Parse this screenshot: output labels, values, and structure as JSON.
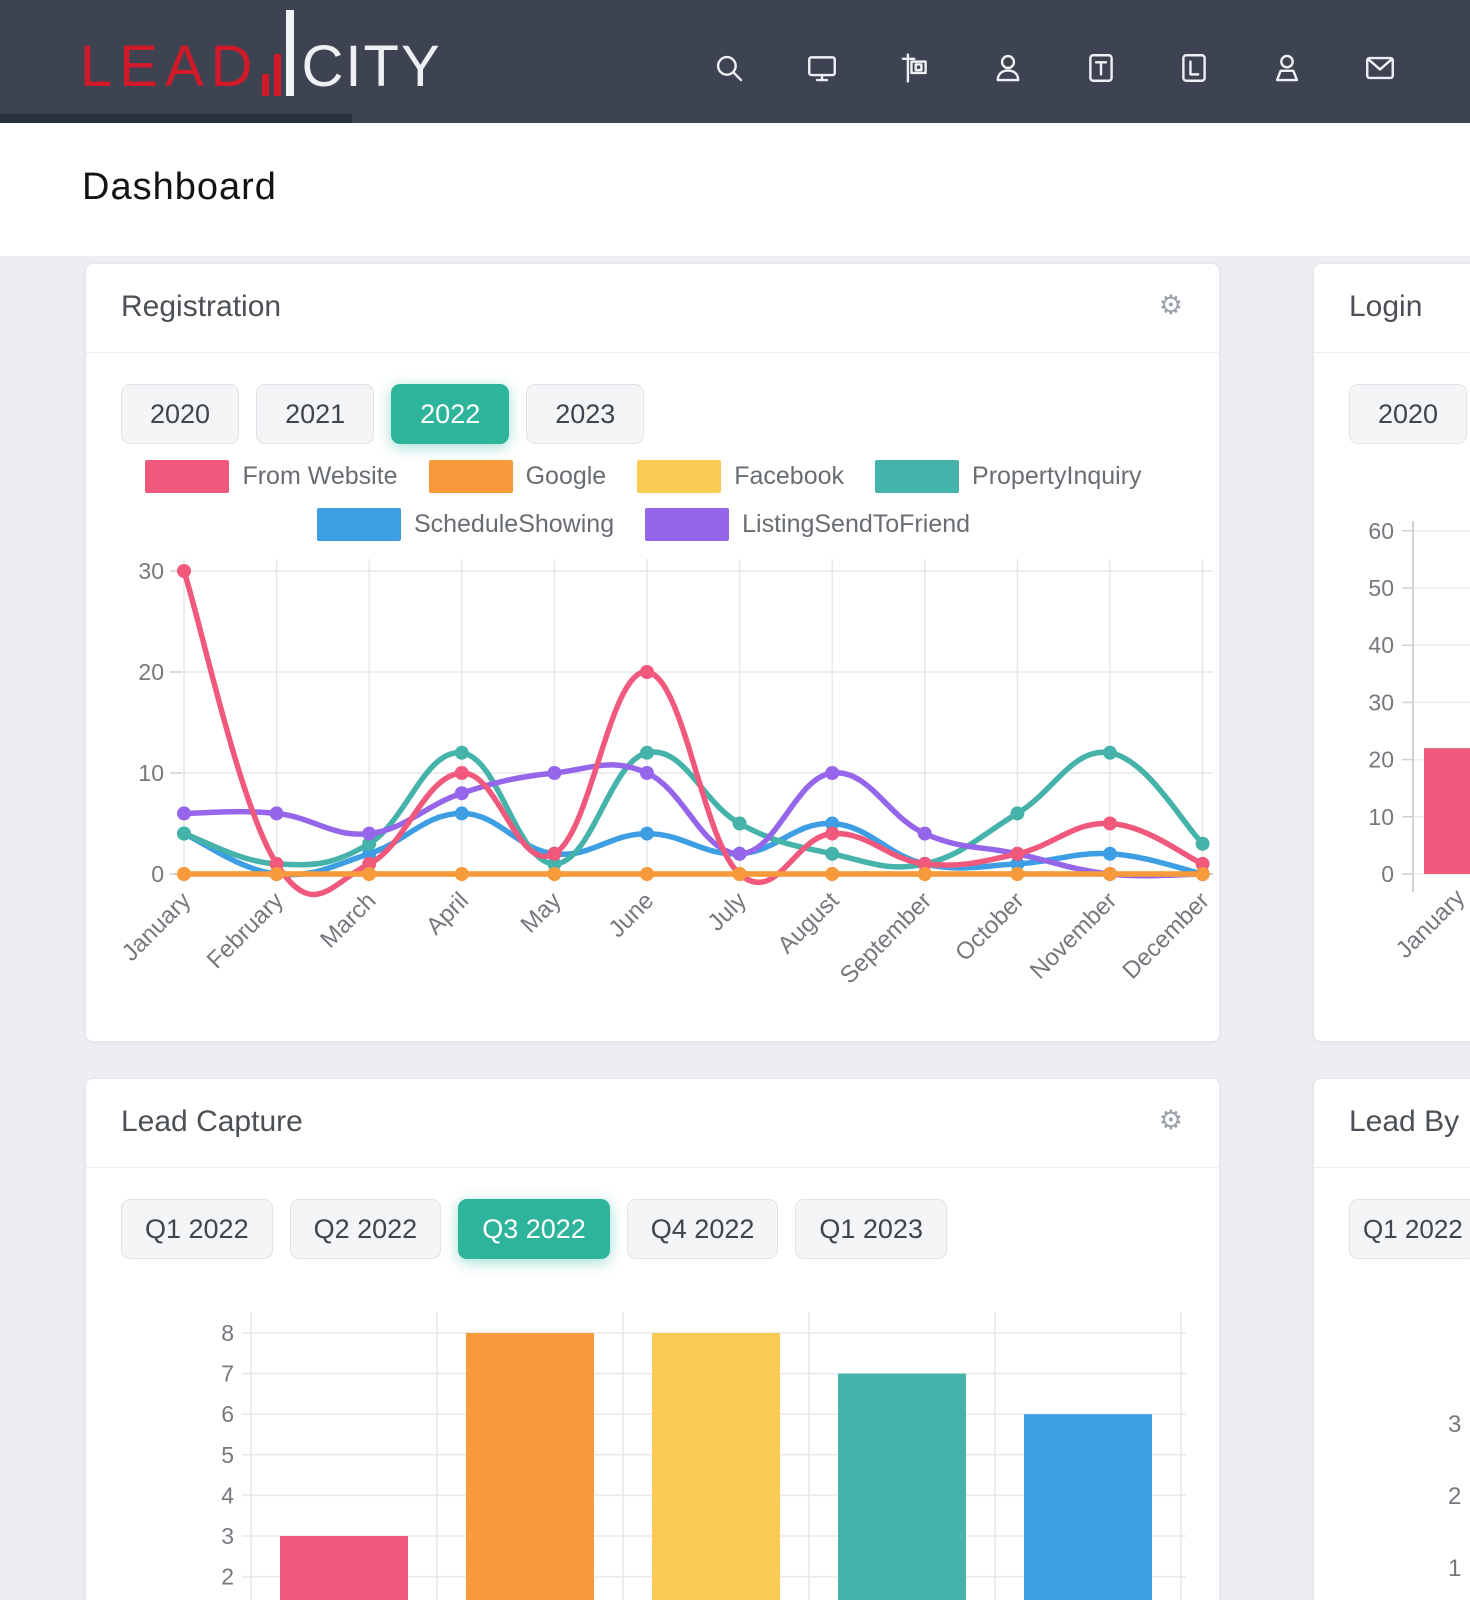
{
  "navbar": {
    "logo_lead": "LEAD",
    "logo_city": "CITY",
    "icons": [
      "search",
      "monitor",
      "property-sign",
      "user",
      "t-box",
      "l-box",
      "user-alt",
      "mail"
    ]
  },
  "page": {
    "title": "Dashboard"
  },
  "registration_card": {
    "title": "Registration",
    "tabs": [
      "2020",
      "2021",
      "2022",
      "2023"
    ],
    "active_tab": "2022"
  },
  "login_card": {
    "title": "Login",
    "tabs": [
      "2020"
    ],
    "active_tab": ""
  },
  "lead_capture_card": {
    "title": "Lead Capture",
    "tabs": [
      "Q1 2022",
      "Q2 2022",
      "Q3 2022",
      "Q4 2022",
      "Q1 2023"
    ],
    "active_tab": "Q3 2022"
  },
  "lead_by_card": {
    "title": "Lead By",
    "tabs": [
      "Q1 2022"
    ],
    "partial_axis_labels": [
      "3",
      "2",
      "1"
    ]
  },
  "chart_data": {
    "registration": {
      "type": "line",
      "categories": [
        "January",
        "February",
        "March",
        "April",
        "May",
        "June",
        "July",
        "August",
        "September",
        "October",
        "November",
        "December"
      ],
      "series": [
        {
          "name": "From Website",
          "color": "#f0597c",
          "values": [
            30,
            1,
            1,
            10,
            2,
            20,
            0,
            4,
            1,
            2,
            5,
            1
          ]
        },
        {
          "name": "Google",
          "color": "#f79a3c",
          "values": [
            0,
            0,
            0,
            0,
            0,
            0,
            0,
            0,
            0,
            0,
            0,
            0
          ]
        },
        {
          "name": "Facebook",
          "color": "#f9cb55",
          "values": [
            0,
            0,
            0,
            0,
            0,
            0,
            0,
            0,
            0,
            0,
            0,
            0
          ]
        },
        {
          "name": "PropertyInquiry",
          "color": "#45b3a9",
          "values": [
            4,
            1,
            3,
            12,
            1,
            12,
            5,
            2,
            1,
            6,
            12,
            3
          ]
        },
        {
          "name": "ScheduleShowing",
          "color": "#3d9ee3",
          "values": [
            4,
            0,
            2,
            6,
            2,
            4,
            2,
            5,
            1,
            1,
            2,
            0
          ]
        },
        {
          "name": "ListingSendToFriend",
          "color": "#9566e9",
          "values": [
            6,
            6,
            4,
            8,
            10,
            10,
            2,
            10,
            4,
            2,
            0,
            0
          ]
        }
      ],
      "ylim": [
        0,
        30
      ],
      "yticks": [
        0,
        10,
        20,
        30
      ],
      "grid": true,
      "legend_position": "top"
    },
    "login": {
      "type": "bar",
      "categories": [
        "January"
      ],
      "values": [
        22
      ],
      "bar_color": "#f0597c",
      "ylim": [
        0,
        60
      ],
      "yticks": [
        0,
        10,
        20,
        30,
        40,
        50,
        60
      ],
      "grid": true
    },
    "lead_capture": {
      "type": "bar",
      "values": [
        3,
        8,
        8,
        7,
        6
      ],
      "colors": [
        "#f0597c",
        "#f79a3c",
        "#f9cb55",
        "#45b3a9",
        "#3d9ee3"
      ],
      "visible_yticks": [
        8,
        7,
        6,
        5,
        4,
        3,
        2
      ],
      "grid": true
    }
  }
}
